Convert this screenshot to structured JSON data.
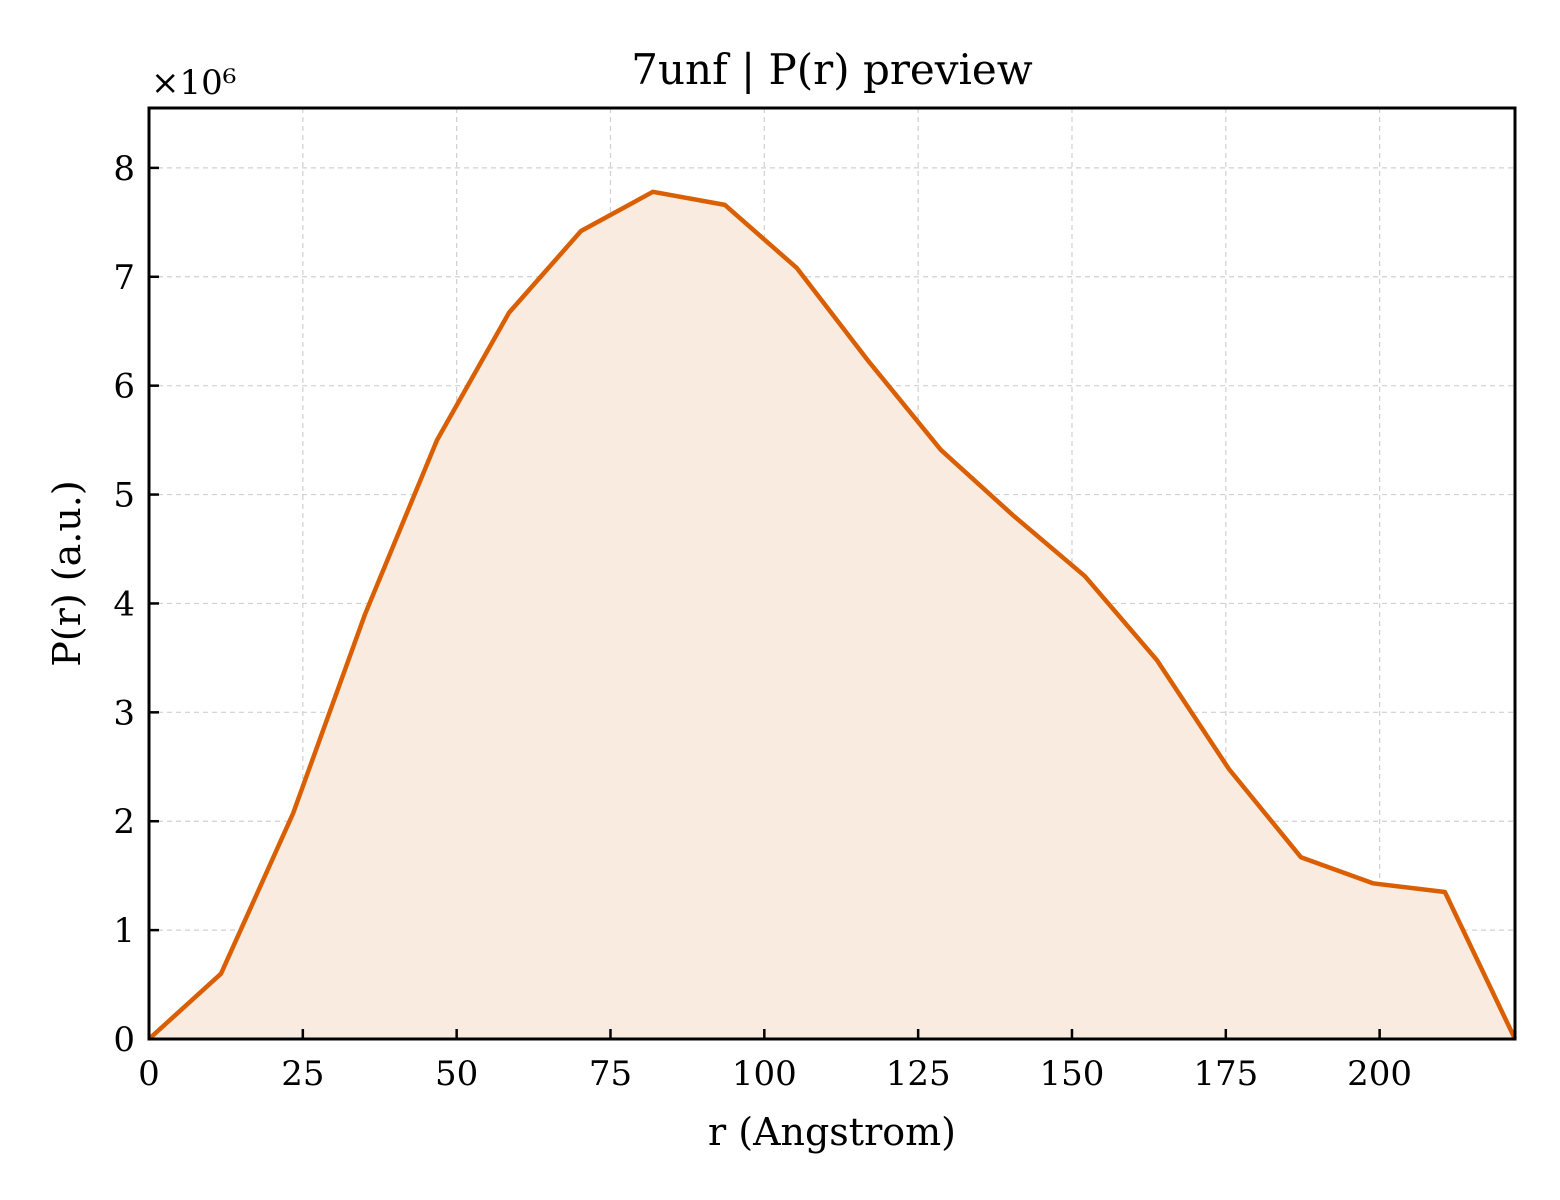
{
  "chart_data": {
    "type": "area",
    "title": "7unf | P(r) preview",
    "xlabel": "r (Angstrom)",
    "ylabel": "P(r) (a.u.)",
    "y_multiplier": "×10⁶",
    "xlim": [
      0,
      222
    ],
    "ylim": [
      0,
      8.55
    ],
    "xticks": [
      0,
      25,
      50,
      75,
      100,
      125,
      150,
      175,
      200
    ],
    "yticks": [
      0,
      1,
      2,
      3,
      4,
      5,
      6,
      7,
      8
    ],
    "grid": true,
    "line_color": "#d95f02",
    "fill_color": "#f9ebe0",
    "series": [
      {
        "x": [
          0,
          11.7,
          23.4,
          35.1,
          46.8,
          58.5,
          70.2,
          81.9,
          93.6,
          105.3,
          117.0,
          128.7,
          140.4,
          152.1,
          163.8,
          175.5,
          187.2,
          198.9,
          210.6,
          222.0
        ],
        "y": [
          0.0,
          0.6,
          2.07,
          3.9,
          5.5,
          6.67,
          7.42,
          7.78,
          7.66,
          7.08,
          6.22,
          5.41,
          4.81,
          4.25,
          3.48,
          2.48,
          1.67,
          1.43,
          1.35,
          0.0
        ]
      }
    ]
  }
}
